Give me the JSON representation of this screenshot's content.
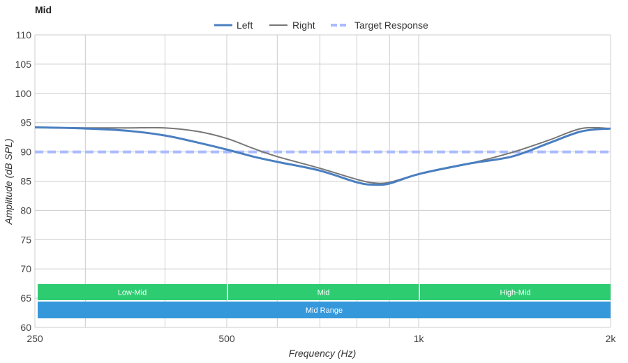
{
  "chart_data": {
    "type": "line",
    "title": "Mid",
    "xlabel": "Frequency (Hz)",
    "ylabel": "Amplitude (dB SPL)",
    "xscale": "log",
    "xlim": [
      250,
      2000
    ],
    "ylim": [
      60,
      110
    ],
    "x_ticks": [
      {
        "value": 250,
        "label": "250"
      },
      {
        "value": 500,
        "label": "500"
      },
      {
        "value": 1000,
        "label": "1k"
      },
      {
        "value": 2000,
        "label": "2k"
      }
    ],
    "y_ticks": [
      60,
      65,
      70,
      75,
      80,
      85,
      90,
      95,
      100,
      105,
      110
    ],
    "x_gridlines": [
      250,
      300,
      400,
      500,
      600,
      700,
      800,
      900,
      1000,
      2000
    ],
    "grid": true,
    "legend_position": "top-center",
    "series": [
      {
        "name": "Left",
        "color": "#4a7fc1",
        "style": "solid-thick",
        "x": [
          250,
          300,
          350,
          400,
          450,
          500,
          550,
          600,
          700,
          800,
          850,
          900,
          1000,
          1200,
          1400,
          1600,
          1800,
          2000
        ],
        "y": [
          94.2,
          94,
          93.6,
          92.8,
          91.6,
          90.4,
          89.2,
          88.3,
          86.8,
          84.8,
          84.4,
          84.6,
          86.2,
          88,
          89.2,
          91.5,
          93.5,
          94
        ]
      },
      {
        "name": "Right",
        "color": "#777777",
        "style": "solid-thin",
        "x": [
          250,
          300,
          350,
          400,
          450,
          500,
          550,
          600,
          700,
          800,
          850,
          900,
          1000,
          1200,
          1400,
          1600,
          1800,
          2000
        ],
        "y": [
          94.2,
          94.1,
          94.1,
          94.1,
          93.5,
          92.3,
          90.6,
          89.2,
          87.2,
          85.3,
          84.7,
          84.8,
          86.2,
          88,
          89.9,
          92,
          94,
          94
        ]
      },
      {
        "name": "Target Response",
        "color": "#aabbff",
        "style": "dashed",
        "x": [
          250,
          2000
        ],
        "y": [
          90,
          90
        ]
      }
    ],
    "annotations": [
      {
        "label": "Low-Mid",
        "x_range": [
          250,
          500
        ],
        "color": "#2ecc71",
        "row": 1
      },
      {
        "label": "Mid",
        "x_range": [
          500,
          1000
        ],
        "color": "#2ecc71",
        "row": 1
      },
      {
        "label": "High-Mid",
        "x_range": [
          1000,
          2000
        ],
        "color": "#2ecc71",
        "row": 1
      },
      {
        "label": "Mid Range",
        "x_range": [
          250,
          2000
        ],
        "color": "#3498db",
        "row": 2
      }
    ]
  }
}
